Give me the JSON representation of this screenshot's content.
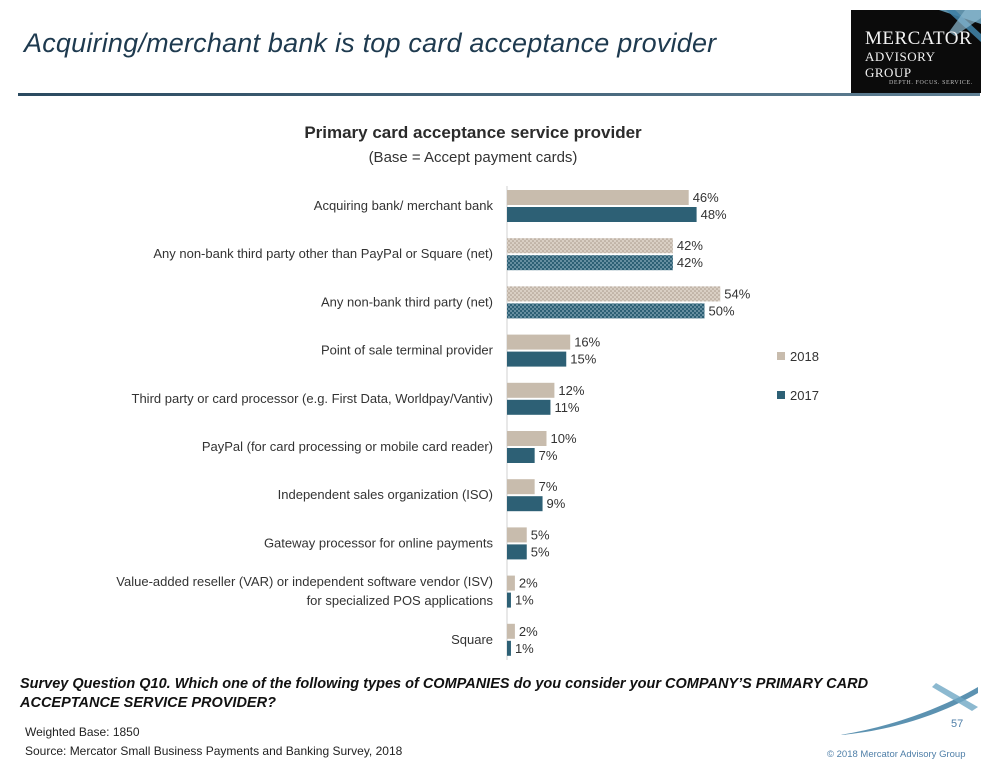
{
  "slide": {
    "title": "Acquiring/merchant bank is top card acceptance provider",
    "question": "Survey Question Q10. Which one of the following types of COMPANIES do you consider your COMPANY’S PRIMARY CARD ACCEPTANCE SERVICE PROVIDER?",
    "weighted_base": "Weighted Base: 1850",
    "source": "Source: Mercator Small Business Payments and Banking Survey, 2018",
    "page_number": "57",
    "copyright": "© 2018 Mercator Advisory Group"
  },
  "logo": {
    "line1": "MERCATOR",
    "line2": "ADVISORY GROUP",
    "line3": "DEPTH. FOCUS. SERVICE."
  },
  "colors": {
    "series_2018": "#c8bcad",
    "series_2017": "#2d6075",
    "title": "#1e3a4f"
  },
  "chart_data": {
    "type": "bar",
    "orientation": "horizontal",
    "title": "Primary card acceptance service provider",
    "subtitle": "(Base = Accept payment cards)",
    "categories": [
      [
        "Acquiring bank/ merchant bank"
      ],
      [
        "Any non-bank third party other than PayPal or Square (net)"
      ],
      [
        "Any non-bank third party (net)"
      ],
      [
        "Point of sale terminal provider"
      ],
      [
        "Third party or card processor (e.g. First Data, Worldpay/Vantiv)"
      ],
      [
        "PayPal (for card processing or mobile card reader)"
      ],
      [
        "Independent sales organization (ISO)"
      ],
      [
        "Gateway processor for online payments"
      ],
      [
        "Value-added reseller (VAR) or independent software vendor (ISV)",
        "for specialized POS applications"
      ],
      [
        "Square"
      ]
    ],
    "net_rows": [
      1,
      2
    ],
    "series": [
      {
        "name": "2018",
        "values": [
          46,
          42,
          54,
          16,
          12,
          10,
          7,
          5,
          2,
          2
        ]
      },
      {
        "name": "2017",
        "values": [
          48,
          42,
          50,
          15,
          11,
          7,
          9,
          5,
          1,
          1
        ]
      }
    ],
    "value_suffix": "%",
    "xlim": [
      0,
      60
    ],
    "grid": false,
    "legend_position": "right"
  }
}
